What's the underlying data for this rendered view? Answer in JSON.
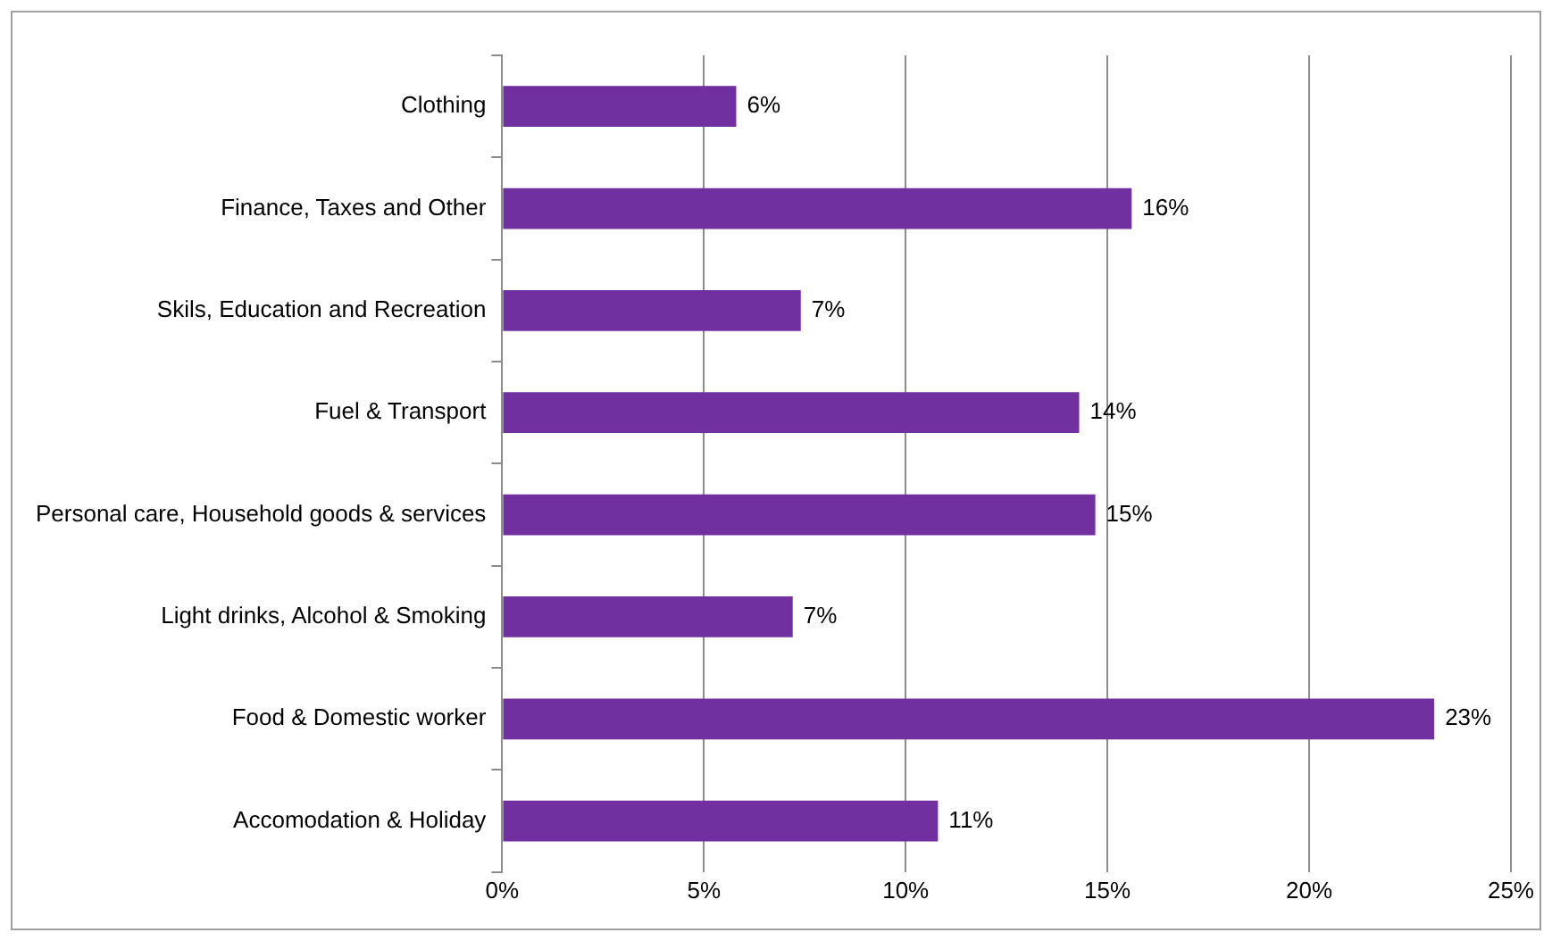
{
  "chart_data": {
    "type": "bar",
    "orientation": "horizontal",
    "categories": [
      "Clothing",
      "Finance, Taxes and Other",
      "Skils, Education and Recreation",
      "Fuel & Transport",
      "Personal care, Household goods & services",
      "Light drinks, Alcohol & Smoking",
      "Food & Domestic worker",
      "Accomodation & Holiday"
    ],
    "values": [
      5.8,
      15.6,
      7.4,
      14.3,
      14.7,
      7.2,
      23.1,
      10.8
    ],
    "value_labels": [
      "6%",
      "16%",
      "7%",
      "14%",
      "15%",
      "7%",
      "23%",
      "11%"
    ],
    "color": "#7030a0",
    "xlim": [
      0,
      25
    ],
    "xticks": [
      {
        "value": 0,
        "label": "0%"
      },
      {
        "value": 5,
        "label": "5%"
      },
      {
        "value": 10,
        "label": "10%"
      },
      {
        "value": 15,
        "label": "15%"
      },
      {
        "value": 20,
        "label": "20%"
      },
      {
        "value": 25,
        "label": "25%"
      }
    ],
    "grid": "x",
    "legend": false
  }
}
